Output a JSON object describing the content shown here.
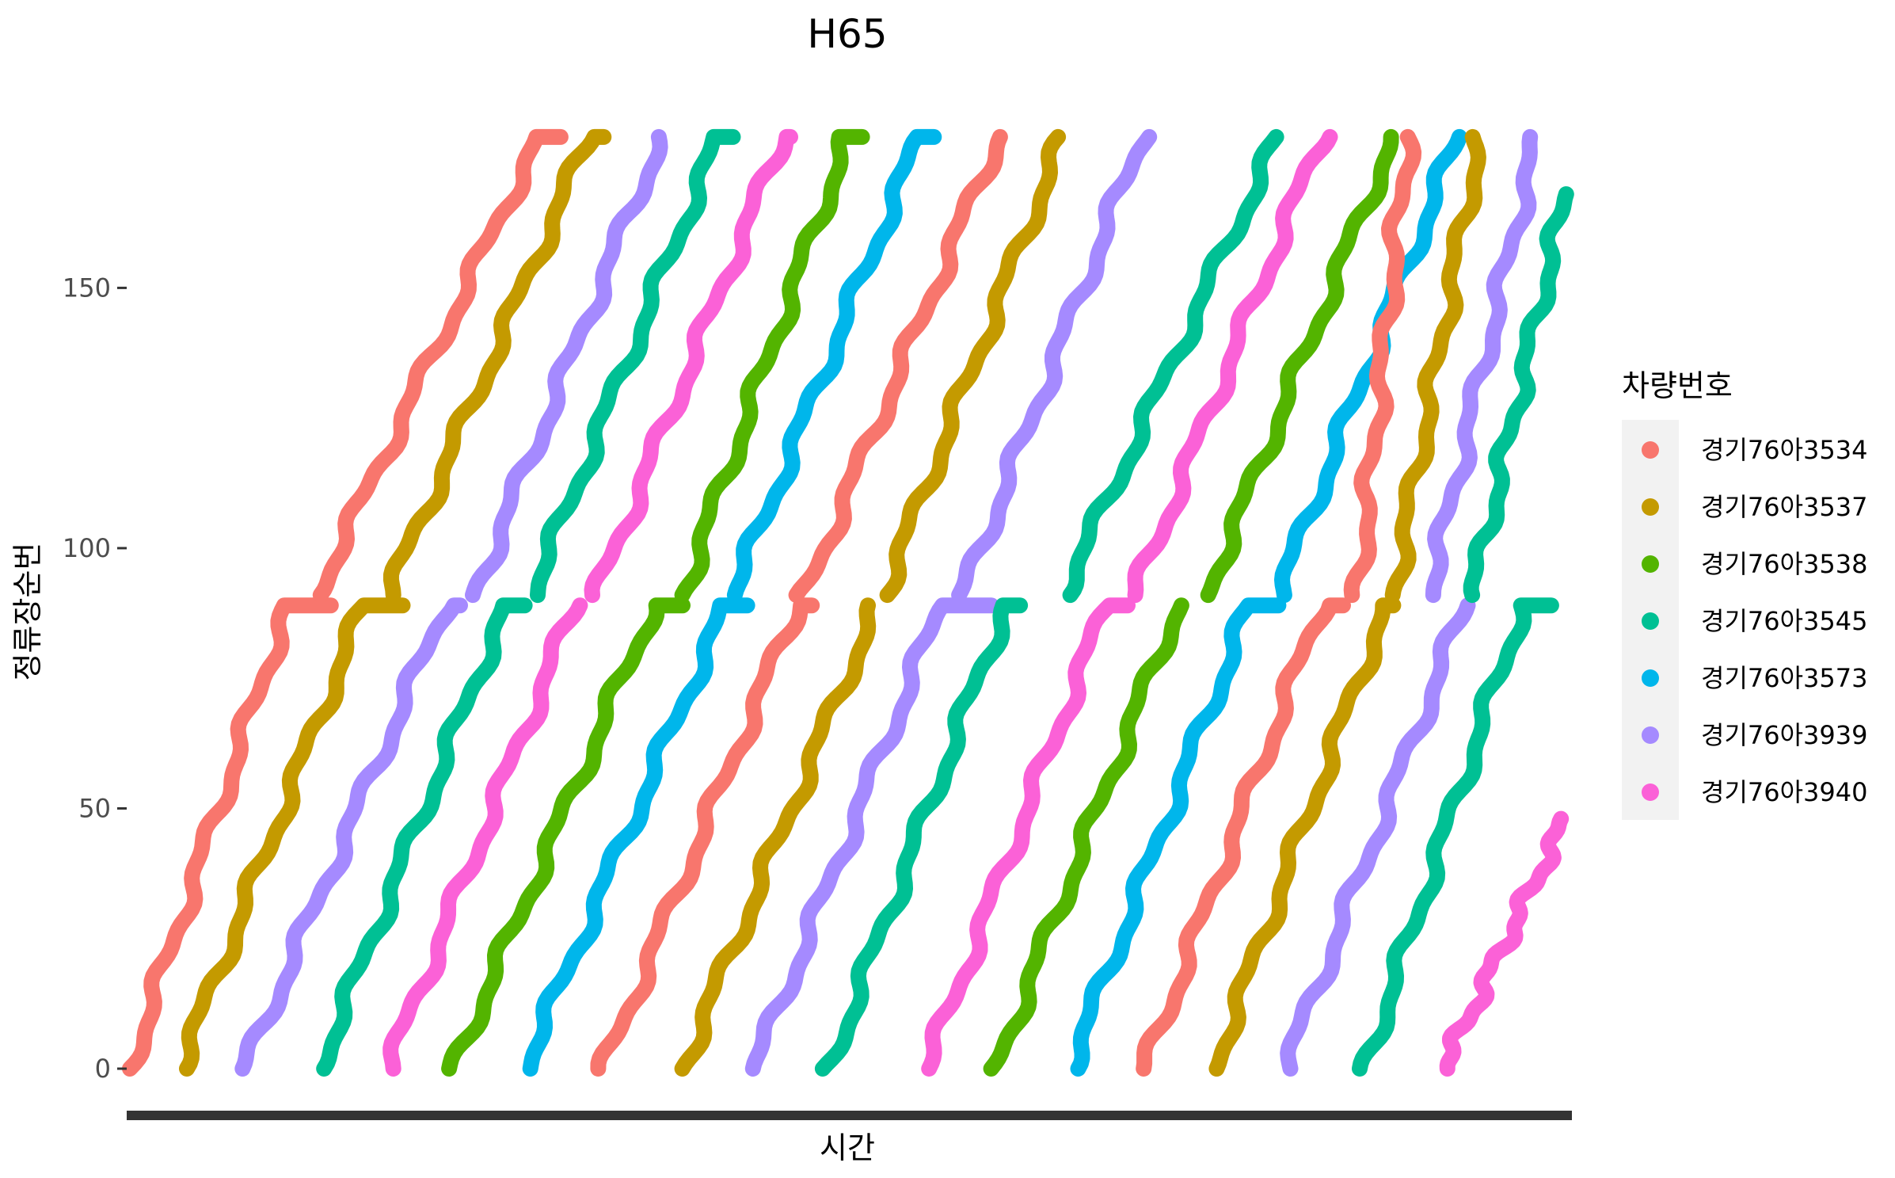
{
  "chart_data": {
    "type": "scatter",
    "title": "H65",
    "xlabel": "시간",
    "ylabel": "정류장순번",
    "ylim": [
      -7,
      184
    ],
    "y_ticks": [
      0,
      50,
      100,
      150
    ],
    "x_ticks_shown": false,
    "grid": false,
    "legend": {
      "title": "차량번호",
      "position": "right",
      "entries": [
        {
          "label": "경기76아3534",
          "color": "#F8766D"
        },
        {
          "label": "경기76아3537",
          "color": "#C49A00"
        },
        {
          "label": "경기76아3538",
          "color": "#53B400"
        },
        {
          "label": "경기76아3545",
          "color": "#00C094"
        },
        {
          "label": "경기76아3573",
          "color": "#00B6EB"
        },
        {
          "label": "경기76아3939",
          "color": "#A58AFF"
        },
        {
          "label": "경기76아3940",
          "color": "#FB61D7"
        }
      ]
    },
    "series": [
      {
        "name": "경기76아3534",
        "color": "#F8766D",
        "trips": [
          [
            0,
            1,
            0
          ],
          [
            1,
            1,
            90
          ],
          [
            1,
            1,
            91
          ],
          [
            2,
            1,
            179
          ],
          [
            3,
            1,
            0
          ],
          [
            4,
            1,
            90
          ],
          [
            4,
            1,
            91
          ],
          [
            5,
            1,
            179
          ],
          [
            6,
            1,
            0
          ],
          [
            7,
            1,
            90
          ],
          [
            7,
            1,
            91
          ],
          [
            8,
            1,
            179
          ]
        ],
        "runs": [
          [
            0.3,
            0.0,
            0.0,
            3.0,
            0.0
          ],
          [
            0.3,
            0.0,
            1.0,
            0.0,
            3.0
          ],
          [
            7.3,
            0.0,
            0.0,
            0.0,
            0.0
          ],
          [
            7.3,
            0.0,
            1.0,
            0.0,
            0.0
          ],
          [
            0.3,
            0.0,
            0.0,
            0.0,
            0.0
          ],
          [
            0.3,
            0.0,
            1.0,
            0.0,
            0.0
          ]
        ]
      },
      {
        "name": "경기76아3537",
        "color": "#C49A00",
        "trips": [],
        "runs": []
      },
      {
        "name": "경기76아3538",
        "color": "#53B400",
        "trips": [],
        "runs": []
      },
      {
        "name": "경기76아3545",
        "color": "#00C094",
        "trips": [],
        "runs": []
      },
      {
        "name": "경기76아3573",
        "color": "#00B6EB",
        "trips": [],
        "runs": []
      },
      {
        "name": "경기76아3939",
        "color": "#A58AFF",
        "trips": [],
        "runs": []
      },
      {
        "name": "경기76아3940",
        "color": "#FB61D7",
        "trips": [],
        "runs": []
      }
    ]
  }
}
